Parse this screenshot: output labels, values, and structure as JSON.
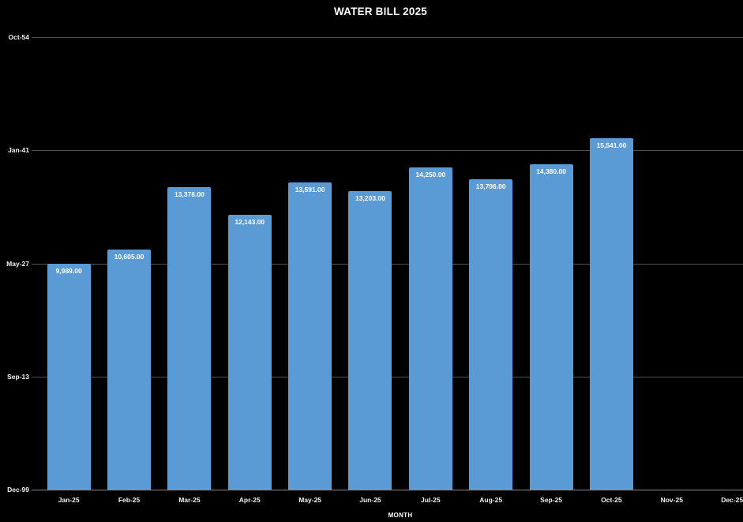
{
  "chart_data": {
    "type": "bar",
    "title": "WATER BILL 2025",
    "xlabel": "MONTH",
    "ylabel": "",
    "categories": [
      "Jan-25",
      "Feb-25",
      "Mar-25",
      "Apr-25",
      "May-25",
      "Jun-25",
      "Jul-25",
      "Aug-25",
      "Sep-25",
      "Oct-25",
      "Nov-25",
      "Dec-25"
    ],
    "values": [
      9989,
      10605,
      13378,
      12143,
      13591,
      13203,
      14250,
      13706,
      14380,
      15541,
      null,
      null
    ],
    "data_labels": [
      "9,989.00",
      "10,605.00",
      "13,378.00",
      "12,143.00",
      "13,591.00",
      "13,203.00",
      "14,250.00",
      "13,706.00",
      "14,380.00",
      "15,541.00",
      "",
      ""
    ],
    "y_ticks": [
      {
        "label": "Oct-54",
        "value": 20000
      },
      {
        "label": "Jan-41",
        "value": 15000
      },
      {
        "label": "May-27",
        "value": 10000
      },
      {
        "label": "Sep-13",
        "value": 5000
      },
      {
        "label": "Dec-99",
        "value": 0
      }
    ],
    "ylim": [
      0,
      20000
    ],
    "grid": "horizontal",
    "legend": "none",
    "colors": {
      "background": "#000000",
      "bar": "#5B9BD5",
      "text": "#FFFFFF",
      "gridline": "#4D4D4D",
      "axis_line": "#8A8A8A"
    }
  }
}
